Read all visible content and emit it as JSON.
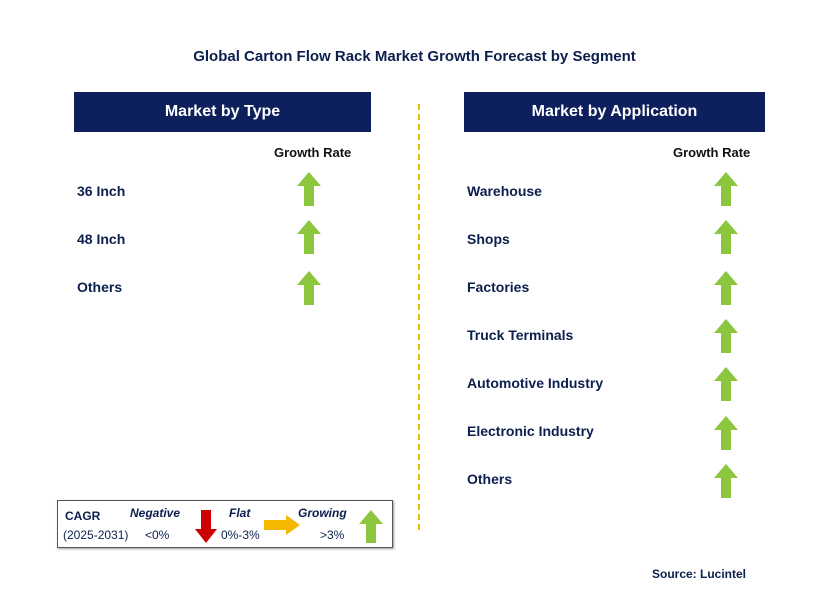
{
  "title": "Global Carton Flow Rack Market Growth Forecast by Segment",
  "left_panel": {
    "header": "Market by Type",
    "column_label": "Growth Rate",
    "items": [
      {
        "label": "36 Inch",
        "trend": "growing"
      },
      {
        "label": "48 Inch",
        "trend": "growing"
      },
      {
        "label": "Others",
        "trend": "growing"
      }
    ]
  },
  "right_panel": {
    "header": "Market by Application",
    "column_label": "Growth Rate",
    "items": [
      {
        "label": "Warehouse",
        "trend": "growing"
      },
      {
        "label": "Shops",
        "trend": "growing"
      },
      {
        "label": "Factories",
        "trend": "growing"
      },
      {
        "label": "Truck Terminals",
        "trend": "growing"
      },
      {
        "label": "Automotive Industry",
        "trend": "growing"
      },
      {
        "label": "Electronic Industry",
        "trend": "growing"
      },
      {
        "label": "Others",
        "trend": "growing"
      }
    ]
  },
  "legend": {
    "cagr_label": "CAGR",
    "period": "(2025-2031)",
    "negative_label": "Negative",
    "negative_range": "<0%",
    "flat_label": "Flat",
    "flat_range": "0%-3%",
    "growing_label": "Growing",
    "growing_range": ">3%"
  },
  "source": "Source: Lucintel",
  "colors": {
    "header_bg": "#0d1f5c",
    "growing": "#8cc63f",
    "negative": "#cc0000",
    "flat": "#f5b800",
    "divider": "#f5b800"
  }
}
